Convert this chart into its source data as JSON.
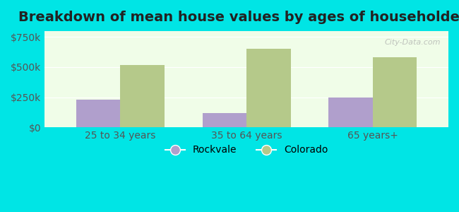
{
  "title": "Breakdown of mean house values by ages of householders",
  "categories": [
    "25 to 34 years",
    "35 to 64 years",
    "65 years+"
  ],
  "rockvale_values": [
    230000,
    120000,
    250000
  ],
  "colorado_values": [
    520000,
    650000,
    580000
  ],
  "rockvale_color": "#b09fcc",
  "colorado_color": "#b5c98a",
  "background_outer": "#00e5e5",
  "background_inner": "#f0fde8",
  "ylim": [
    0,
    800000
  ],
  "yticks": [
    0,
    250000,
    500000,
    750000
  ],
  "ytick_labels": [
    "$0",
    "$250k",
    "$500k",
    "$750k"
  ],
  "bar_width": 0.35,
  "legend_labels": [
    "Rockvale",
    "Colorado"
  ],
  "title_fontsize": 14,
  "tick_fontsize": 10,
  "legend_fontsize": 10
}
